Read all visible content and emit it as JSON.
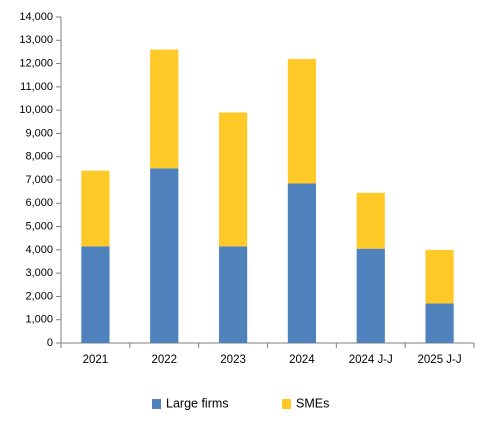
{
  "chart_data": {
    "type": "bar",
    "stacked": true,
    "title": "",
    "xlabel": "",
    "ylabel": "",
    "categories": [
      "2021",
      "2022",
      "2023",
      "2024",
      "2024 J-J",
      "2025 J-J"
    ],
    "series": [
      {
        "name": "Large firms",
        "color": "#4F81BD",
        "values": [
          4150,
          7500,
          4150,
          6850,
          4050,
          1700
        ]
      },
      {
        "name": "SMEs",
        "color": "#FFCA28",
        "values": [
          3250,
          5100,
          5750,
          5350,
          2400,
          2300
        ]
      }
    ],
    "ylim": [
      0,
      14000
    ],
    "yticks": [
      0,
      1000,
      2000,
      3000,
      4000,
      5000,
      6000,
      7000,
      8000,
      9000,
      10000,
      11000,
      12000,
      13000,
      14000
    ],
    "ytick_labels": [
      "0",
      "1,000",
      "2,000",
      "3,000",
      "4,000",
      "5,000",
      "6,000",
      "7,000",
      "8,000",
      "9,000",
      "10,000",
      "11,000",
      "12,000",
      "13,000",
      "14,000"
    ],
    "grid": false,
    "legend": "bottom-center"
  }
}
